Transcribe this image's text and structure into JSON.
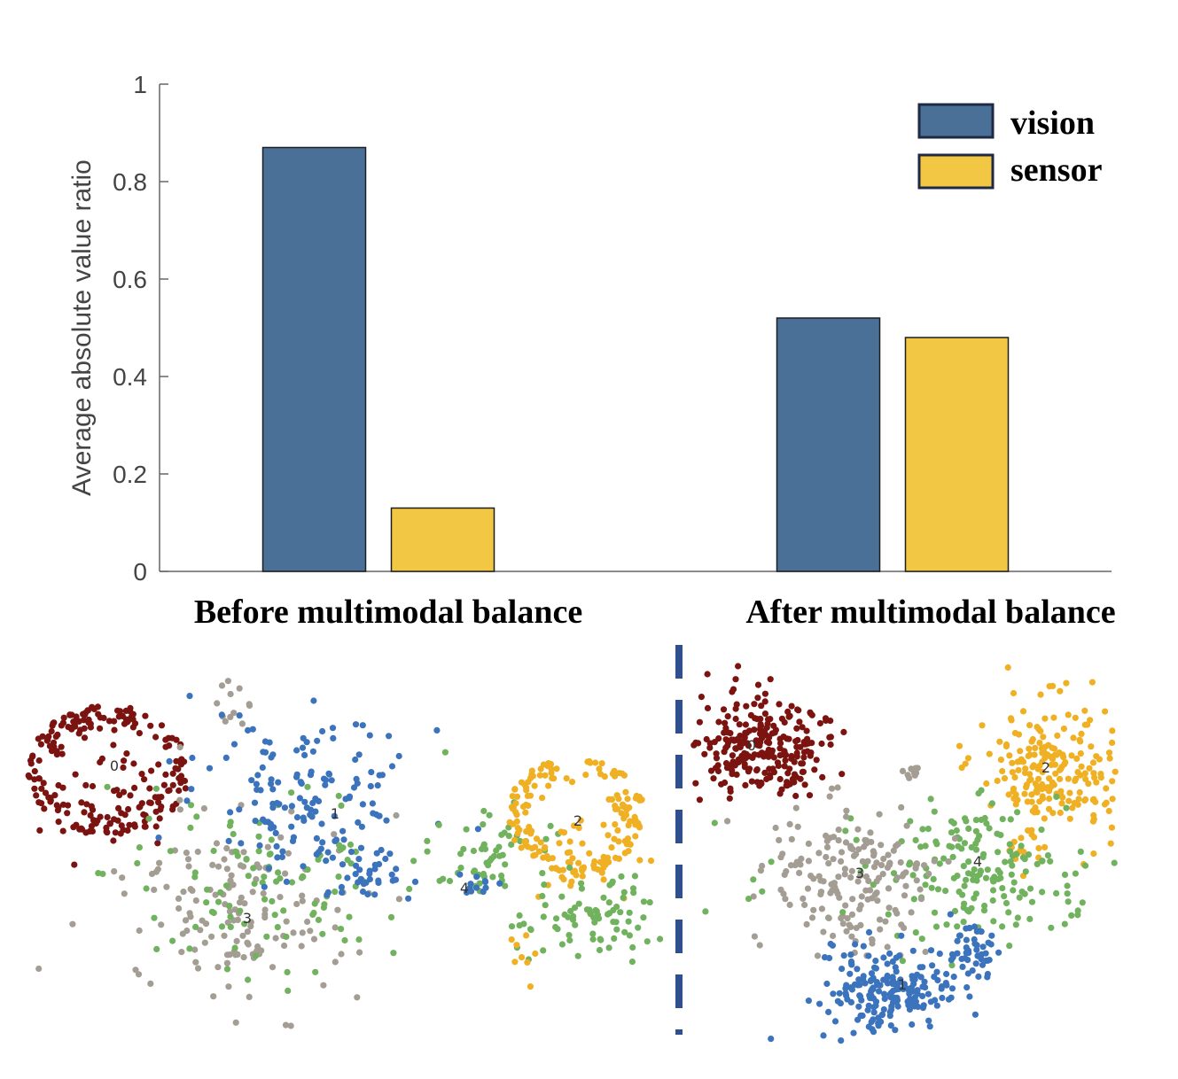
{
  "chart_data": [
    {
      "type": "bar",
      "categories": [
        "Before multimodal balance",
        "After multimodal balance"
      ],
      "series": [
        {
          "name": "vision",
          "values": [
            0.87,
            0.52
          ],
          "color": "#4a7098"
        },
        {
          "name": "sensor",
          "values": [
            0.13,
            0.48
          ],
          "color": "#f2c744"
        }
      ],
      "title": "",
      "xlabel": "",
      "ylabel": "Average absolute value ratio",
      "ylim": [
        0,
        1
      ],
      "yticks": [
        0,
        0.2,
        0.4,
        0.6,
        0.8,
        1
      ],
      "ytick_labels": [
        "0",
        "0.2",
        "0.4",
        "0.6",
        "0.8",
        "1"
      ],
      "legend_position": "top-right",
      "grid": false
    },
    {
      "type": "scatter",
      "title": "Before multimodal balance",
      "cluster_labels": [
        "0",
        "1",
        "2",
        "3",
        "4"
      ],
      "cluster_colors": {
        "0": "#7b1410",
        "1": "#3b73bd",
        "2": "#f0b024",
        "3": "#a39d93",
        "4": "#71b25f"
      }
    },
    {
      "type": "scatter",
      "title": "After multimodal balance",
      "cluster_labels": [
        "0",
        "1",
        "2",
        "3",
        "4"
      ],
      "cluster_colors": {
        "0": "#7b1410",
        "1": "#3b73bd",
        "2": "#f0b024",
        "3": "#a39d93",
        "4": "#71b25f"
      }
    }
  ]
}
